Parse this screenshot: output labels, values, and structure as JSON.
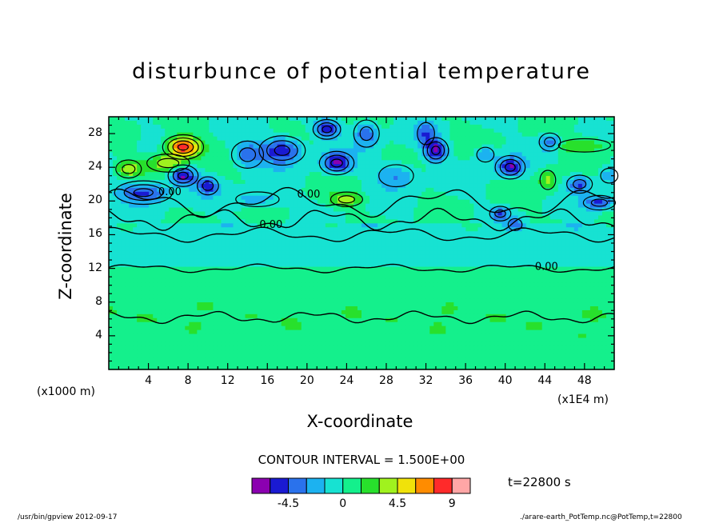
{
  "chart_data": {
    "type": "heatmap",
    "title": "disturbunce of potential temperature",
    "xlabel": "X-coordinate",
    "ylabel": "Z-coordinate",
    "x_unit": "(x1E4 m)",
    "y_unit": "(x1000 m)",
    "xlim": [
      0,
      51
    ],
    "ylim": [
      0,
      30
    ],
    "x_ticks": [
      4,
      8,
      12,
      16,
      20,
      24,
      28,
      32,
      36,
      40,
      44,
      48
    ],
    "y_ticks": [
      4,
      8,
      12,
      16,
      20,
      24,
      28
    ],
    "contour_interval_label": "CONTOUR INTERVAL = 1.500E+00",
    "contour_labels": [
      {
        "text": "0.00",
        "x": 5.0,
        "z": 20.7
      },
      {
        "text": "0.00",
        "x": 19.0,
        "z": 20.4
      },
      {
        "text": "0.00",
        "x": 15.2,
        "z": 16.8
      },
      {
        "text": "0.00",
        "x": 43.0,
        "z": 11.8
      }
    ],
    "features": [
      {
        "x": 7.5,
        "z": 26.4,
        "amp": 9.0,
        "sx": 1.7,
        "sz": 1.2
      },
      {
        "x": 6.0,
        "z": 24.5,
        "amp": 4.5,
        "sx": 2.0,
        "sz": 1.0
      },
      {
        "x": 2.0,
        "z": 23.8,
        "amp": 4.0,
        "sx": 1.2,
        "sz": 1.0
      },
      {
        "x": 24.0,
        "z": 20.2,
        "amp": 4.0,
        "sx": 1.5,
        "sz": 0.8
      },
      {
        "x": 44.3,
        "z": 22.5,
        "amp": 3.5,
        "sx": 0.9,
        "sz": 1.3
      },
      {
        "x": 48.0,
        "z": 26.6,
        "amp": 3.0,
        "sx": 3.0,
        "sz": 0.9
      },
      {
        "x": 7.5,
        "z": 23.0,
        "amp": -6.5,
        "sx": 1.3,
        "sz": 1.1
      },
      {
        "x": 3.5,
        "z": 21.0,
        "amp": -5.5,
        "sx": 2.5,
        "sz": 1.2
      },
      {
        "x": 10.0,
        "z": 21.8,
        "amp": -5.0,
        "sx": 1.0,
        "sz": 1.0
      },
      {
        "x": 14.0,
        "z": 25.5,
        "amp": -4.0,
        "sx": 1.5,
        "sz": 1.5
      },
      {
        "x": 15.0,
        "z": 20.2,
        "amp": -3.0,
        "sx": 2.5,
        "sz": 1.0
      },
      {
        "x": 17.5,
        "z": 26.0,
        "amp": -6.0,
        "sx": 2.0,
        "sz": 1.5
      },
      {
        "x": 22.0,
        "z": 28.5,
        "amp": -6.0,
        "sx": 1.2,
        "sz": 1.0
      },
      {
        "x": 23.0,
        "z": 24.5,
        "amp": -6.0,
        "sx": 1.5,
        "sz": 1.2
      },
      {
        "x": 26.0,
        "z": 28.0,
        "amp": -4.5,
        "sx": 1.2,
        "sz": 1.5
      },
      {
        "x": 29.0,
        "z": 23.0,
        "amp": -3.5,
        "sx": 2.0,
        "sz": 1.5
      },
      {
        "x": 32.0,
        "z": 28.0,
        "amp": -3.5,
        "sx": 1.0,
        "sz": 1.5
      },
      {
        "x": 33.0,
        "z": 26.0,
        "amp": -6.0,
        "sx": 1.1,
        "sz": 1.3
      },
      {
        "x": 40.5,
        "z": 24.0,
        "amp": -6.0,
        "sx": 1.3,
        "sz": 1.2
      },
      {
        "x": 38.0,
        "z": 25.5,
        "amp": -3.5,
        "sx": 1.0,
        "sz": 1.0
      },
      {
        "x": 39.5,
        "z": 18.5,
        "amp": -4.0,
        "sx": 1.0,
        "sz": 0.8
      },
      {
        "x": 41.0,
        "z": 17.2,
        "amp": -3.0,
        "sx": 0.8,
        "sz": 0.8
      },
      {
        "x": 44.5,
        "z": 27.0,
        "amp": -4.5,
        "sx": 1.0,
        "sz": 1.0
      },
      {
        "x": 47.5,
        "z": 22.0,
        "amp": -5.0,
        "sx": 1.2,
        "sz": 1.0
      },
      {
        "x": 49.5,
        "z": 19.8,
        "amp": -5.0,
        "sx": 1.5,
        "sz": 0.8
      },
      {
        "x": 50.5,
        "z": 23.0,
        "amp": -3.0,
        "sx": 1.0,
        "sz": 1.0
      }
    ],
    "colorbar": {
      "colors": [
        "#8b00b0",
        "#1a1ad2",
        "#2a72ec",
        "#1cb2f0",
        "#17e2d2",
        "#14f08c",
        "#28e02c",
        "#a0f21e",
        "#f0e20a",
        "#ff8c00",
        "#ff2a2a",
        "#ffa6a6"
      ],
      "tick_labels": [
        "-4.5",
        "0",
        "4.5",
        "9"
      ]
    },
    "time_label": "t=22800 s"
  },
  "footer": {
    "left": "/usr/bin/gpview  2012-09-17",
    "right": "./arare-earth_PotTemp.nc@PotTemp,t=22800"
  }
}
